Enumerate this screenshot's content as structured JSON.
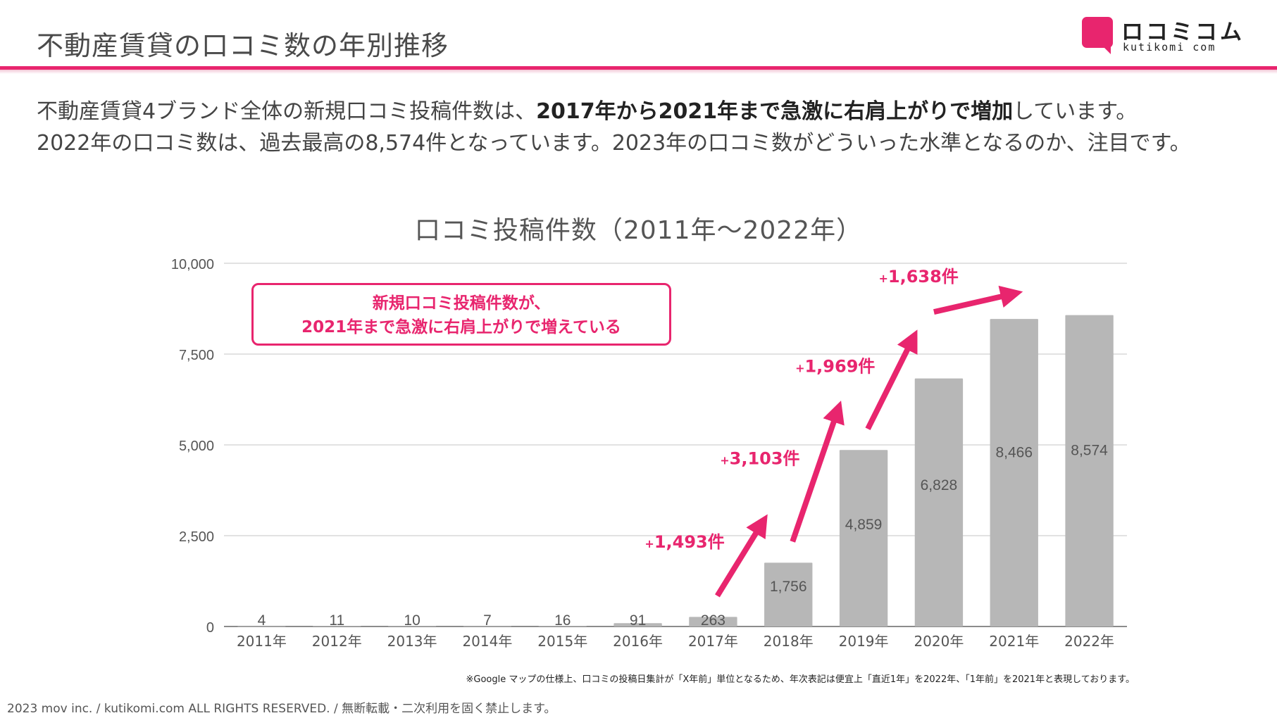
{
  "header": {
    "title": "不動産賃貸の口コミ数の年別推移",
    "logo_name": "ロコミコム",
    "logo_sub": "kutikomi com"
  },
  "description": {
    "line1_pre": "不動産賃貸4ブランド全体の新規口コミ投稿件数は、",
    "line1_bold": "2017年から2021年まで急激に右肩上がりで増加",
    "line1_post": "しています。",
    "line2": "2022年の口コミ数は、過去最高の8,574件となっています。2023年の口コミ数がどういった水準となるのか、注目です。"
  },
  "callout": {
    "line1": "新規口コミ投稿件数が、",
    "line2": "2021年まで急激に右肩上がりで増えている"
  },
  "chart_data": {
    "type": "bar",
    "title": "口コミ投稿件数（2011年〜2022年）",
    "categories": [
      "2011年",
      "2012年",
      "2013年",
      "2014年",
      "2015年",
      "2016年",
      "2017年",
      "2018年",
      "2019年",
      "2020年",
      "2021年",
      "2022年"
    ],
    "values": [
      4,
      11,
      10,
      7,
      16,
      91,
      263,
      1756,
      4859,
      6828,
      8466,
      8574
    ],
    "value_labels": [
      "4",
      "11",
      "10",
      "7",
      "16",
      "91",
      "263",
      "1,756",
      "4,859",
      "6,828",
      "8,466",
      "8,574"
    ],
    "ylim": [
      0,
      10000
    ],
    "yticks": [
      0,
      2500,
      5000,
      7500,
      10000
    ],
    "ytick_labels": [
      "0",
      "2,500",
      "5,000",
      "7,500",
      "10,000"
    ],
    "grid": true,
    "bar_color": "#b7b7b7",
    "accent_color": "#e8256e",
    "annotations": [
      {
        "from": "2017年",
        "to": "2018年",
        "plus": "+",
        "text": "1,493件"
      },
      {
        "from": "2018年",
        "to": "2019年",
        "plus": "+",
        "text": "3,103件"
      },
      {
        "from": "2019年",
        "to": "2020年",
        "plus": "+",
        "text": "1,969件"
      },
      {
        "from": "2020年",
        "to": "2021年",
        "plus": "+",
        "text": "1,638件"
      }
    ]
  },
  "note": "※Google マップの仕様上、口コミの投稿日集計が「X年前」単位となるため、年次表記は便宜上「直近1年」を2022年、「1年前」を2021年と表現しております。",
  "footer": "2023 mov inc. / kutikomi.com ALL RIGHTS RESERVED. / 無断転載・二次利用を固く禁止します。"
}
